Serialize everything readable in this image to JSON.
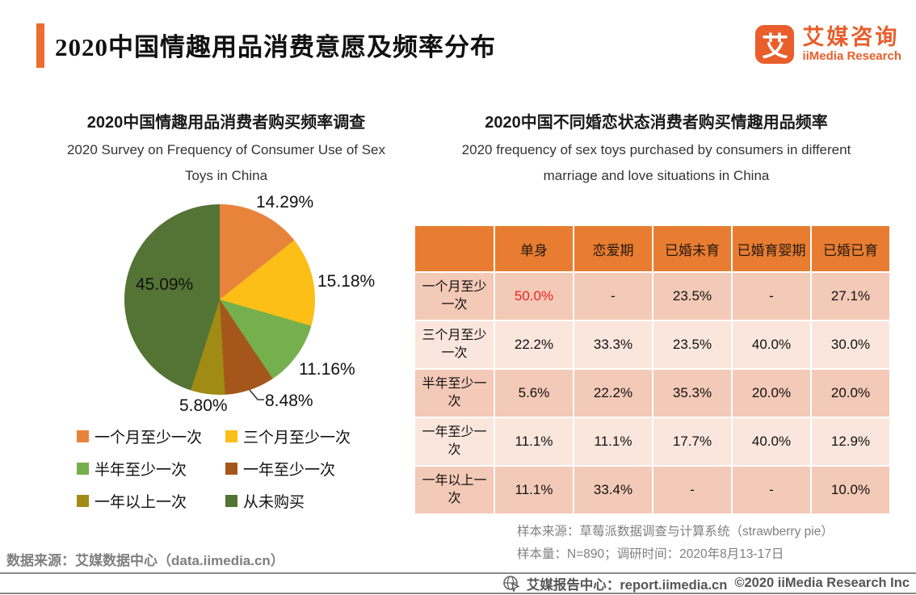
{
  "header": {
    "title": "2020中国情趣用品消费意愿及频率分布",
    "logo": {
      "mark": "艾",
      "name_cn": "艾媒咨询",
      "name_en": "iiMedia Research"
    }
  },
  "chart_data": [
    {
      "type": "pie",
      "title": "2020中国情趣用品消费者购买频率调查",
      "subtitle": "2020 Survey on Frequency of Consumer Use of Sex Toys in China",
      "subtitle_lines": [
        "2020 Survey on Frequency of Consumer Use of Sex",
        "Toys in China"
      ],
      "categories": [
        "一个月至少一次",
        "三个月至少一次",
        "半年至少一次",
        "一年至少一次",
        "一年以上一次",
        "从未购买"
      ],
      "values": [
        14.29,
        15.18,
        11.16,
        8.48,
        5.8,
        45.09
      ],
      "value_labels": [
        "14.29%",
        "15.18%",
        "11.16%",
        "8.48%",
        "5.80%",
        "45.09%"
      ],
      "colors": [
        "#E8833C",
        "#FBBF17",
        "#76AF4D",
        "#A5571B",
        "#A08B14",
        "#537434"
      ],
      "start_angle_deg": 0,
      "direction": "clockwise",
      "legend_position": "bottom, 2 columns"
    },
    {
      "type": "table",
      "title": "2020中国不同婚恋状态消费者购买情趣用品频率",
      "subtitle": "2020 frequency of sex toys purchased by consumers in different marriage and love situations in China",
      "subtitle_lines": [
        "2020 frequency of sex toys purchased by consumers in different",
        "marriage and love situations in China"
      ],
      "columns": [
        "",
        "单身",
        "恋爱期",
        "已婚未育",
        "已婚育婴期",
        "已婚已育"
      ],
      "rows": [
        {
          "label": "一个月至少一次",
          "values": [
            "50.0%",
            "-",
            "23.5%",
            "-",
            "27.1%"
          ],
          "red_value_index": 0
        },
        {
          "label": "三个月至少一次",
          "values": [
            "22.2%",
            "33.3%",
            "23.5%",
            "40.0%",
            "30.0%"
          ]
        },
        {
          "label": "半年至少一次",
          "values": [
            "5.6%",
            "22.2%",
            "35.3%",
            "20.0%",
            "20.0%"
          ]
        },
        {
          "label": "一年至少一次",
          "values": [
            "11.1%",
            "11.1%",
            "17.7%",
            "40.0%",
            "12.9%"
          ]
        },
        {
          "label": "一年以上一次",
          "values": [
            "11.1%",
            "33.4%",
            "-",
            "-",
            "10.0%"
          ]
        }
      ],
      "notes": [
        "样本来源：草莓派数据调查与计算系统（strawberry pie）",
        "样本量：N=890；调研时间：2020年8月13-17日"
      ]
    }
  ],
  "footer": {
    "data_source": "数据来源：艾媒数据中心（data.iimedia.cn）",
    "report_center": "艾媒报告中心：report.iimedia.cn",
    "copyright": "©2020  iiMedia Research Inc"
  },
  "colors": {
    "accent_orange": "#ED6C30",
    "logo_orange": "#E95E2B",
    "table_header_bg": "#E87D31",
    "row_band_dark": "#F3C9B7",
    "row_band_light": "#FBE6DD",
    "red_value": "#EC2222",
    "note_gray": "#808080",
    "footer_gray": "#555555"
  }
}
